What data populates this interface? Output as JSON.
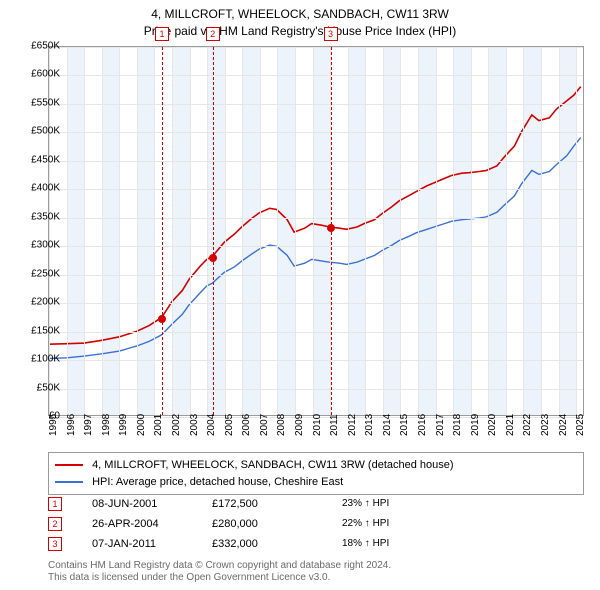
{
  "titles": {
    "main": "4, MILLCROFT, WHEELOCK, SANDBACH, CW11 3RW",
    "sub": "Price paid vs. HM Land Registry's House Price Index (HPI)"
  },
  "chart": {
    "type": "line",
    "xlim": [
      1995,
      2025.5
    ],
    "ylim": [
      0,
      650000
    ],
    "ytick_step": 50000,
    "y_ticks": [
      "£0",
      "£50K",
      "£100K",
      "£150K",
      "£200K",
      "£250K",
      "£300K",
      "£350K",
      "£400K",
      "£450K",
      "£500K",
      "£550K",
      "£600K",
      "£650K"
    ],
    "x_ticks": [
      "1995",
      "1996",
      "1997",
      "1998",
      "1999",
      "2000",
      "2001",
      "2002",
      "2003",
      "2004",
      "2005",
      "2006",
      "2007",
      "2008",
      "2009",
      "2010",
      "2011",
      "2012",
      "2013",
      "2014",
      "2015",
      "2016",
      "2017",
      "2018",
      "2019",
      "2020",
      "2021",
      "2022",
      "2023",
      "2024",
      "2025"
    ],
    "grid_color": "#e6e6e6",
    "band_color": "#edf3fa",
    "band_years": [
      1996,
      1998,
      2000,
      2002,
      2004,
      2006,
      2008,
      2010,
      2012,
      2014,
      2016,
      2018,
      2020,
      2022,
      2024
    ],
    "background_color": "#ffffff",
    "series": [
      {
        "name": "price_paid",
        "color": "#d40000",
        "width": 1.6,
        "points": [
          [
            1995.0,
            125000
          ],
          [
            1996.0,
            126000
          ],
          [
            1997.0,
            127000
          ],
          [
            1998.0,
            132000
          ],
          [
            1999.0,
            138000
          ],
          [
            2000.0,
            148000
          ],
          [
            2000.7,
            158000
          ],
          [
            2001.2,
            168000
          ],
          [
            2001.43,
            172500
          ],
          [
            2002.0,
            200000
          ],
          [
            2002.6,
            220000
          ],
          [
            2003.0,
            240000
          ],
          [
            2003.6,
            262000
          ],
          [
            2004.0,
            275000
          ],
          [
            2004.32,
            280000
          ],
          [
            2005.0,
            305000
          ],
          [
            2005.6,
            320000
          ],
          [
            2006.0,
            332000
          ],
          [
            2006.6,
            348000
          ],
          [
            2007.0,
            357000
          ],
          [
            2007.6,
            365000
          ],
          [
            2008.0,
            363000
          ],
          [
            2008.6,
            345000
          ],
          [
            2009.0,
            323000
          ],
          [
            2009.6,
            330000
          ],
          [
            2010.0,
            338000
          ],
          [
            2010.6,
            335000
          ],
          [
            2011.02,
            332000
          ],
          [
            2011.6,
            330000
          ],
          [
            2012.0,
            328000
          ],
          [
            2012.6,
            332000
          ],
          [
            2013.0,
            338000
          ],
          [
            2013.6,
            345000
          ],
          [
            2014.0,
            355000
          ],
          [
            2014.6,
            368000
          ],
          [
            2015.0,
            378000
          ],
          [
            2015.6,
            388000
          ],
          [
            2016.0,
            395000
          ],
          [
            2016.6,
            405000
          ],
          [
            2017.0,
            410000
          ],
          [
            2017.6,
            418000
          ],
          [
            2018.0,
            423000
          ],
          [
            2018.6,
            427000
          ],
          [
            2019.0,
            428000
          ],
          [
            2019.6,
            430000
          ],
          [
            2020.0,
            432000
          ],
          [
            2020.6,
            440000
          ],
          [
            2021.0,
            455000
          ],
          [
            2021.6,
            475000
          ],
          [
            2022.0,
            500000
          ],
          [
            2022.6,
            530000
          ],
          [
            2023.0,
            520000
          ],
          [
            2023.6,
            525000
          ],
          [
            2024.0,
            540000
          ],
          [
            2024.6,
            555000
          ],
          [
            2025.0,
            565000
          ],
          [
            2025.4,
            580000
          ]
        ]
      },
      {
        "name": "hpi",
        "color": "#3a6fd8",
        "width": 1.4,
        "points": [
          [
            1995.0,
            100000
          ],
          [
            1996.0,
            101000
          ],
          [
            1997.0,
            104000
          ],
          [
            1998.0,
            108000
          ],
          [
            1999.0,
            113000
          ],
          [
            2000.0,
            122000
          ],
          [
            2000.7,
            130000
          ],
          [
            2001.2,
            138000
          ],
          [
            2001.43,
            142000
          ],
          [
            2002.0,
            160000
          ],
          [
            2002.6,
            178000
          ],
          [
            2003.0,
            195000
          ],
          [
            2003.6,
            215000
          ],
          [
            2004.0,
            228000
          ],
          [
            2004.32,
            233000
          ],
          [
            2005.0,
            252000
          ],
          [
            2005.6,
            262000
          ],
          [
            2006.0,
            272000
          ],
          [
            2006.6,
            285000
          ],
          [
            2007.0,
            293000
          ],
          [
            2007.6,
            300000
          ],
          [
            2008.0,
            298000
          ],
          [
            2008.6,
            282000
          ],
          [
            2009.0,
            263000
          ],
          [
            2009.6,
            268000
          ],
          [
            2010.0,
            275000
          ],
          [
            2010.6,
            272000
          ],
          [
            2011.02,
            270000
          ],
          [
            2011.6,
            268000
          ],
          [
            2012.0,
            266000
          ],
          [
            2012.6,
            270000
          ],
          [
            2013.0,
            275000
          ],
          [
            2013.6,
            282000
          ],
          [
            2014.0,
            290000
          ],
          [
            2014.6,
            300000
          ],
          [
            2015.0,
            308000
          ],
          [
            2015.6,
            316000
          ],
          [
            2016.0,
            322000
          ],
          [
            2016.6,
            328000
          ],
          [
            2017.0,
            332000
          ],
          [
            2017.6,
            338000
          ],
          [
            2018.0,
            342000
          ],
          [
            2018.6,
            345000
          ],
          [
            2019.0,
            346000
          ],
          [
            2019.6,
            348000
          ],
          [
            2020.0,
            350000
          ],
          [
            2020.6,
            358000
          ],
          [
            2021.0,
            370000
          ],
          [
            2021.6,
            387000
          ],
          [
            2022.0,
            408000
          ],
          [
            2022.6,
            432000
          ],
          [
            2023.0,
            425000
          ],
          [
            2023.6,
            430000
          ],
          [
            2024.0,
            442000
          ],
          [
            2024.6,
            458000
          ],
          [
            2025.0,
            475000
          ],
          [
            2025.4,
            490000
          ]
        ]
      }
    ],
    "markers": [
      {
        "n": "1",
        "x": 2001.43,
        "y": 172500
      },
      {
        "n": "2",
        "x": 2004.32,
        "y": 280000
      },
      {
        "n": "3",
        "x": 2011.02,
        "y": 332000
      }
    ]
  },
  "legend": {
    "line1": {
      "color": "#d40000",
      "label": "4, MILLCROFT, WHEELOCK, SANDBACH, CW11 3RW (detached house)"
    },
    "line2": {
      "color": "#3a6fd8",
      "label": "HPI: Average price, detached house, Cheshire East"
    }
  },
  "sales": [
    {
      "n": "1",
      "date": "08-JUN-2001",
      "price": "£172,500",
      "pct": "23% ↑ HPI"
    },
    {
      "n": "2",
      "date": "26-APR-2004",
      "price": "£280,000",
      "pct": "22% ↑ HPI"
    },
    {
      "n": "3",
      "date": "07-JAN-2011",
      "price": "£332,000",
      "pct": "18% ↑ HPI"
    }
  ],
  "footer": {
    "l1": "Contains HM Land Registry data © Crown copyright and database right 2024.",
    "l2": "This data is licensed under the Open Government Licence v3.0."
  }
}
